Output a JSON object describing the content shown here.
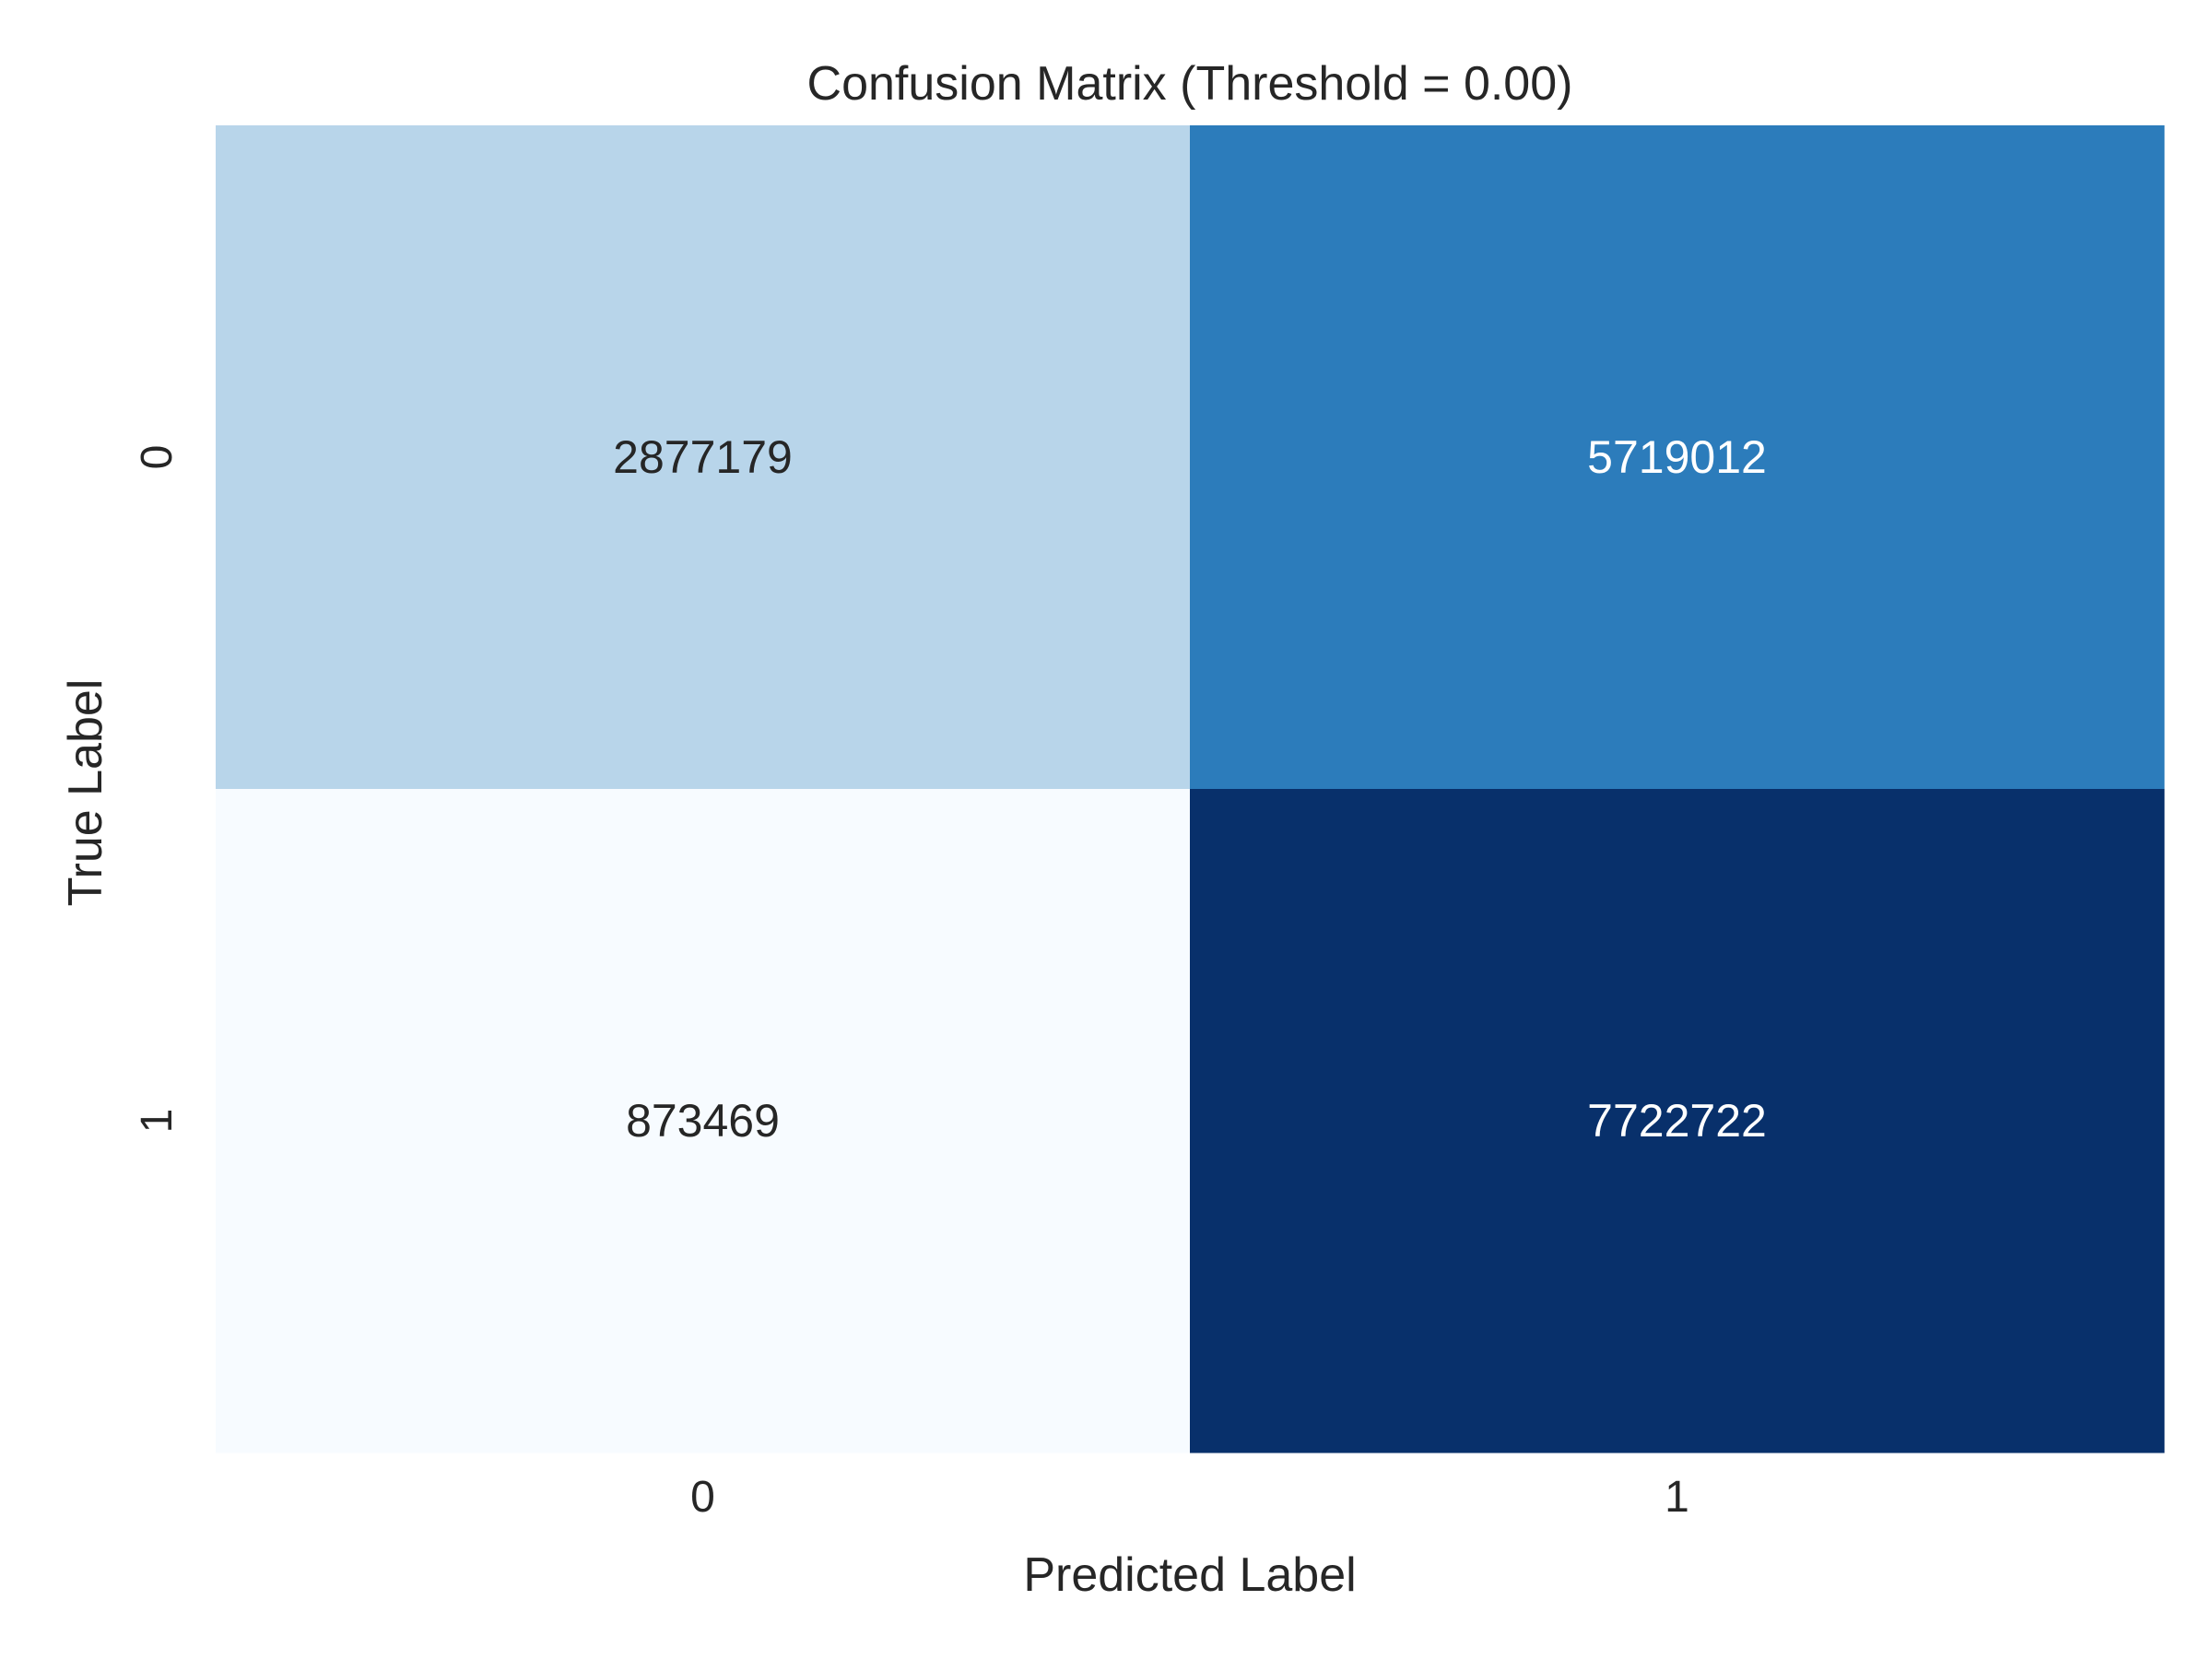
{
  "chart_data": {
    "type": "heatmap",
    "title": "Confusion Matrix (Threshold = 0.00)",
    "xlabel": "Predicted Label",
    "ylabel": "True Label",
    "x_categories": [
      "0",
      "1"
    ],
    "y_categories": [
      "0",
      "1"
    ],
    "matrix": [
      [
        2877179,
        5719012
      ],
      [
        873469,
        7722722
      ]
    ],
    "colormap": "Blues",
    "colors": {
      "low": "#f7fbff",
      "mid_low": "#bad6ea",
      "mid_high": "#2d7dba",
      "high": "#08306b",
      "text_dark": "#262626",
      "text_light": "#ffffff"
    },
    "grid": false,
    "colorbar": false
  }
}
